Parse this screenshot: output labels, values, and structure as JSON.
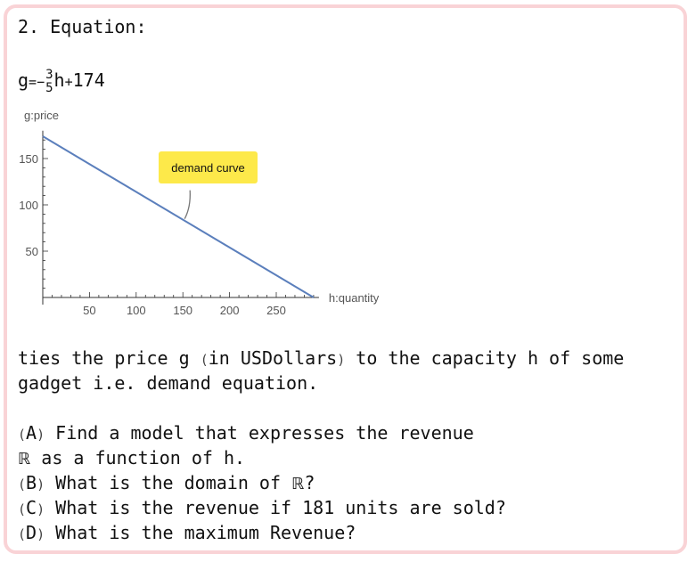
{
  "heading": "2. Equation:",
  "equation": {
    "var_left": "g",
    "equals": "=",
    "minus": "−",
    "frac_num": "3",
    "frac_den": "5",
    "var_right": "h",
    "plus": "+",
    "constant": "174"
  },
  "chart_data": {
    "type": "line",
    "series": [
      {
        "name": "demand curve",
        "x": [
          0,
          290
        ],
        "y": [
          174,
          0
        ]
      }
    ],
    "ylabel": "g:price",
    "xlabel": "h:quantity",
    "xticks": [
      "50",
      "100",
      "150",
      "200",
      "250"
    ],
    "yticks": [
      "50",
      "100",
      "150"
    ],
    "xlim": [
      0,
      290
    ],
    "ylim": [
      0,
      180
    ],
    "annotation": "demand curve",
    "colors": {
      "line": "#5b7fbc",
      "annotation_bg": "#fde94a",
      "axis": "#333333",
      "tick_label": "#555555"
    }
  },
  "paragraph": {
    "l1_a": "ties the price g ",
    "l1_p1": "(",
    "l1_b": "in USDollars",
    "l1_p2": ")",
    "l1_c": " to the capacity h of some",
    "l2": "gadget i.e. demand equation."
  },
  "questions": [
    {
      "open": "(",
      "letter": "A",
      "close": ")",
      "text": " Find a model that expresses the revenue"
    },
    {
      "symbol": "ℝ",
      "text": " as a function of h."
    },
    {
      "open": "(",
      "letter": "B",
      "close": ")",
      "text": " What is the domain of ",
      "symbol": "ℝ",
      "tail": "?"
    },
    {
      "open": "(",
      "letter": "C",
      "close": ")",
      "text": " What is the revenue if 181 units are sold?"
    },
    {
      "open": "(",
      "letter": "D",
      "close": ")",
      "text": " What is the maximum Revenue?"
    }
  ],
  "colors": {
    "cell_border": "#f9d3d6"
  }
}
